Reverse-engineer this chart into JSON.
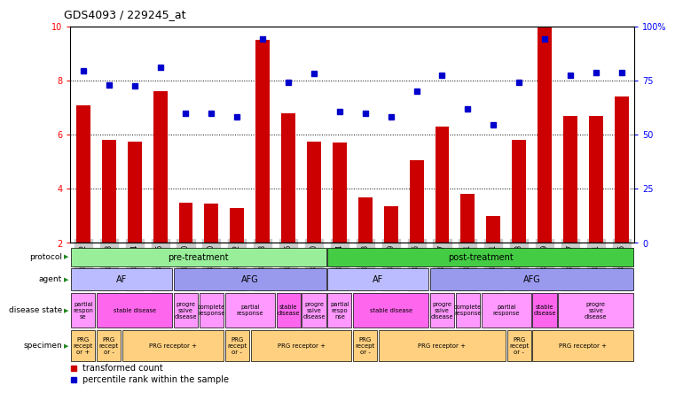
{
  "title": "GDS4093 / 229245_at",
  "samples": [
    "GSM832392",
    "GSM832398",
    "GSM832394",
    "GSM832396",
    "GSM832390",
    "GSM832400",
    "GSM832402",
    "GSM832408",
    "GSM832406",
    "GSM832410",
    "GSM832404",
    "GSM832393",
    "GSM832399",
    "GSM832395",
    "GSM832397",
    "GSM832391",
    "GSM832401",
    "GSM832403",
    "GSM832409",
    "GSM832407",
    "GSM832411",
    "GSM832405"
  ],
  "bar_values": [
    7.1,
    5.8,
    5.75,
    7.6,
    3.5,
    3.45,
    3.3,
    9.5,
    6.8,
    5.75,
    5.7,
    3.7,
    3.35,
    5.05,
    6.3,
    3.8,
    3.0,
    5.8,
    10.0,
    6.7,
    6.7,
    7.4
  ],
  "dot_values": [
    8.35,
    7.85,
    7.8,
    8.5,
    6.8,
    6.8,
    6.65,
    9.55,
    7.95,
    8.25,
    6.85,
    6.8,
    6.65,
    7.6,
    8.2,
    6.95,
    6.35,
    7.95,
    9.55,
    8.2,
    8.3,
    8.3
  ],
  "bar_color": "#CC0000",
  "dot_color": "#0000CC",
  "ylim_left": [
    2,
    10
  ],
  "ylim_right": [
    0,
    100
  ],
  "yticks_left": [
    2,
    4,
    6,
    8,
    10
  ],
  "yticks_right": [
    0,
    25,
    50,
    75,
    100
  ],
  "ytick_labels_right": [
    "0",
    "25",
    "50",
    "75",
    "100%"
  ],
  "hlines": [
    4.0,
    6.0,
    8.0
  ],
  "protocol": [
    {
      "label": "pre-treatment",
      "start": 0,
      "end": 10,
      "color": "#99EE99"
    },
    {
      "label": "post-treatment",
      "start": 10,
      "end": 22,
      "color": "#44CC44"
    }
  ],
  "agent": [
    {
      "label": "AF",
      "start": 0,
      "end": 4,
      "color": "#BBBBFF"
    },
    {
      "label": "AFG",
      "start": 4,
      "end": 10,
      "color": "#9999EE"
    },
    {
      "label": "AF",
      "start": 10,
      "end": 14,
      "color": "#BBBBFF"
    },
    {
      "label": "AFG",
      "start": 14,
      "end": 22,
      "color": "#9999EE"
    }
  ],
  "disease_state": [
    {
      "label": "partial\nrespon\nse",
      "start": 0,
      "end": 1,
      "color": "#FF99FF"
    },
    {
      "label": "stable disease",
      "start": 1,
      "end": 4,
      "color": "#FF66EE"
    },
    {
      "label": "progre\nssive\ndisease",
      "start": 4,
      "end": 5,
      "color": "#FF99FF"
    },
    {
      "label": "complete\nresponse",
      "start": 5,
      "end": 6,
      "color": "#FF99FF"
    },
    {
      "label": "partial\nresponse",
      "start": 6,
      "end": 8,
      "color": "#FF99FF"
    },
    {
      "label": "stable\ndisease",
      "start": 8,
      "end": 9,
      "color": "#FF66EE"
    },
    {
      "label": "progre\nssive\ndisease",
      "start": 9,
      "end": 10,
      "color": "#FF99FF"
    },
    {
      "label": "partial\nrespo\nnse",
      "start": 10,
      "end": 11,
      "color": "#FF99FF"
    },
    {
      "label": "stable disease",
      "start": 11,
      "end": 14,
      "color": "#FF66EE"
    },
    {
      "label": "progre\nssive\ndisease",
      "start": 14,
      "end": 15,
      "color": "#FF99FF"
    },
    {
      "label": "complete\nresponse",
      "start": 15,
      "end": 16,
      "color": "#FF99FF"
    },
    {
      "label": "partial\nresponse",
      "start": 16,
      "end": 18,
      "color": "#FF99FF"
    },
    {
      "label": "stable\ndisease",
      "start": 18,
      "end": 19,
      "color": "#FF66EE"
    },
    {
      "label": "progre\nssive\ndisease",
      "start": 19,
      "end": 22,
      "color": "#FF99FF"
    }
  ],
  "specimen": [
    {
      "label": "PRG\nrecept\nor +",
      "start": 0,
      "end": 1,
      "color": "#FFD080"
    },
    {
      "label": "PRG\nrecept\nor -",
      "start": 1,
      "end": 2,
      "color": "#FFD080"
    },
    {
      "label": "PRG receptor +",
      "start": 2,
      "end": 6,
      "color": "#FFD080"
    },
    {
      "label": "PRG\nrecept\nor -",
      "start": 6,
      "end": 7,
      "color": "#FFD080"
    },
    {
      "label": "PRG receptor +",
      "start": 7,
      "end": 11,
      "color": "#FFD080"
    },
    {
      "label": "PRG\nrecept\nor -",
      "start": 11,
      "end": 12,
      "color": "#FFD080"
    },
    {
      "label": "PRG receptor +",
      "start": 12,
      "end": 17,
      "color": "#FFD080"
    },
    {
      "label": "PRG\nrecept\nor -",
      "start": 17,
      "end": 18,
      "color": "#FFD080"
    },
    {
      "label": "PRG receptor +",
      "start": 18,
      "end": 22,
      "color": "#FFD080"
    }
  ],
  "row_labels": [
    "protocol",
    "agent",
    "disease state",
    "specimen"
  ],
  "legend": [
    {
      "label": "transformed count",
      "color": "#CC0000"
    },
    {
      "label": "percentile rank within the sample",
      "color": "#0000CC"
    }
  ]
}
